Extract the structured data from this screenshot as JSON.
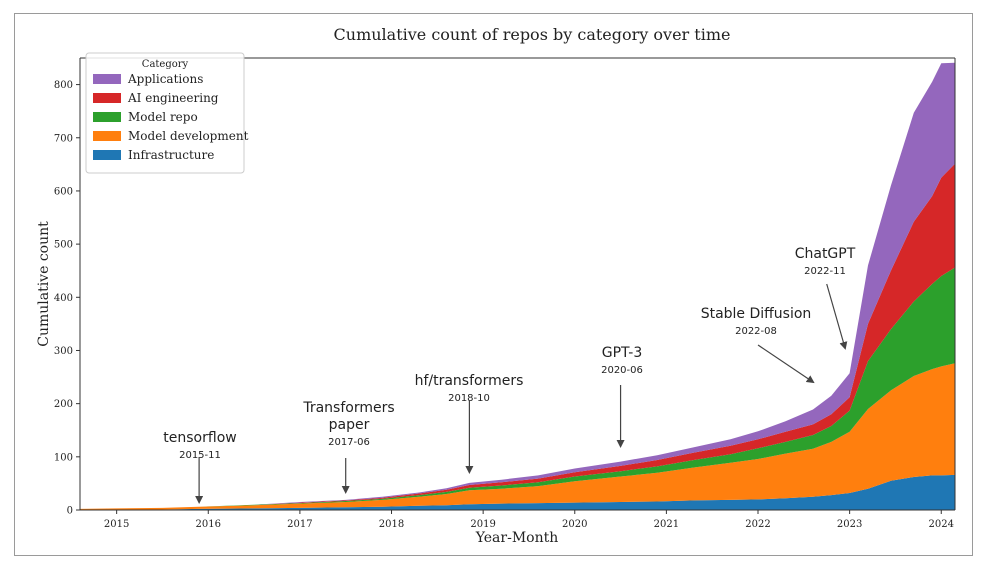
{
  "chart_data": {
    "type": "area",
    "stacked": true,
    "title": "Cumulative count of repos by category over time",
    "xlabel": "Year-Month",
    "ylabel": "Cumulative count",
    "xlim": [
      2014.6,
      2024.15
    ],
    "ylim": [
      0,
      850
    ],
    "x_ticks": [
      2015,
      2016,
      2017,
      2018,
      2019,
      2020,
      2021,
      2022,
      2023,
      2024
    ],
    "x_tick_labels": [
      "2015",
      "2016",
      "2017",
      "2018",
      "2019",
      "2020",
      "2021",
      "2022",
      "2023",
      "2024"
    ],
    "y_ticks": [
      0,
      100,
      200,
      300,
      400,
      500,
      600,
      700,
      800
    ],
    "y_tick_labels": [
      "0",
      "100",
      "200",
      "300",
      "400",
      "500",
      "600",
      "700",
      "800"
    ],
    "grid": false,
    "legend": {
      "title": "Category",
      "placement": "top-left",
      "entries": [
        "Applications",
        "AI engineering",
        "Model repo",
        "Model development",
        "Infrastructure"
      ]
    },
    "x": [
      2014.6,
      2015.0,
      2015.5,
      2015.9,
      2016.5,
      2017.0,
      2017.5,
      2017.9,
      2018.3,
      2018.6,
      2018.85,
      2019.2,
      2019.6,
      2020.0,
      2020.5,
      2020.9,
      2021.3,
      2021.7,
      2022.0,
      2022.3,
      2022.6,
      2022.8,
      2023.0,
      2023.2,
      2023.45,
      2023.7,
      2023.9,
      2024.0,
      2024.15
    ],
    "series": [
      {
        "name": "Infrastructure",
        "color": "#1f77b4",
        "values": [
          1,
          1,
          1,
          2,
          3,
          4,
          5,
          6,
          8,
          9,
          11,
          12,
          13,
          14,
          15,
          16,
          18,
          19,
          20,
          22,
          25,
          28,
          32,
          40,
          55,
          62,
          65,
          65,
          66
        ]
      },
      {
        "name": "Model development",
        "color": "#ff7f0e",
        "values": [
          1,
          2,
          3,
          4,
          6,
          8,
          10,
          13,
          17,
          21,
          26,
          28,
          32,
          40,
          48,
          54,
          62,
          70,
          76,
          84,
          90,
          100,
          115,
          150,
          170,
          190,
          200,
          205,
          210
        ]
      },
      {
        "name": "Model repo",
        "color": "#2ca02c",
        "values": [
          0,
          0,
          0,
          0,
          1,
          1,
          2,
          2,
          3,
          4,
          5,
          6,
          7,
          9,
          10,
          12,
          14,
          16,
          20,
          22,
          26,
          30,
          40,
          90,
          115,
          140,
          160,
          170,
          180
        ]
      },
      {
        "name": "AI engineering",
        "color": "#d62728",
        "values": [
          0,
          0,
          0,
          0,
          0,
          1,
          1,
          2,
          3,
          4,
          5,
          6,
          7,
          8,
          10,
          12,
          14,
          16,
          17,
          19,
          20,
          22,
          25,
          70,
          110,
          150,
          165,
          185,
          195
        ]
      },
      {
        "name": "Applications",
        "color": "#9467bd",
        "values": [
          0,
          0,
          0,
          0,
          0,
          1,
          1,
          2,
          2,
          3,
          4,
          5,
          6,
          7,
          8,
          9,
          10,
          12,
          15,
          20,
          28,
          35,
          45,
          110,
          160,
          205,
          215,
          215,
          190
        ]
      }
    ],
    "annotations": [
      {
        "label": "tensorflow",
        "date": "2015-11",
        "x": 2015.9
      },
      {
        "label": "Transformers paper",
        "date": "2017-06",
        "x": 2017.5
      },
      {
        "label": "hf/transformers",
        "date": "2018-10",
        "x": 2018.85
      },
      {
        "label": "GPT-3",
        "date": "2020-06",
        "x": 2020.5
      },
      {
        "label": "Stable Diffusion",
        "date": "2022-08",
        "x": 2022.6
      },
      {
        "label": "ChatGPT",
        "date": "2022-11",
        "x": 2022.9
      }
    ]
  }
}
